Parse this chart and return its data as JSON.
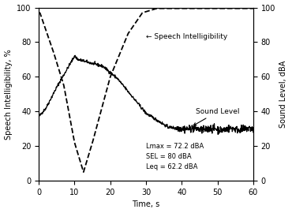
{
  "title": "",
  "xlabel": "Time, s",
  "ylabel_left": "Speech Intelligibility, %",
  "ylabel_right": "Sound Level, dBA",
  "xlim": [
    0,
    60
  ],
  "ylim_left": [
    0,
    100
  ],
  "ylim_right": [
    0,
    100
  ],
  "xticks": [
    0,
    10,
    20,
    30,
    40,
    50,
    60
  ],
  "yticks": [
    0,
    20,
    40,
    60,
    80,
    100
  ],
  "annotation_text": "Lmax = 72.2 dBA\nSEL = 80 dBA\nLeq = 62.2 dBA",
  "speech_label": "← Speech Intelligibility",
  "sound_label": "Sound Level",
  "background_color": "#ffffff",
  "line_color": "#000000"
}
